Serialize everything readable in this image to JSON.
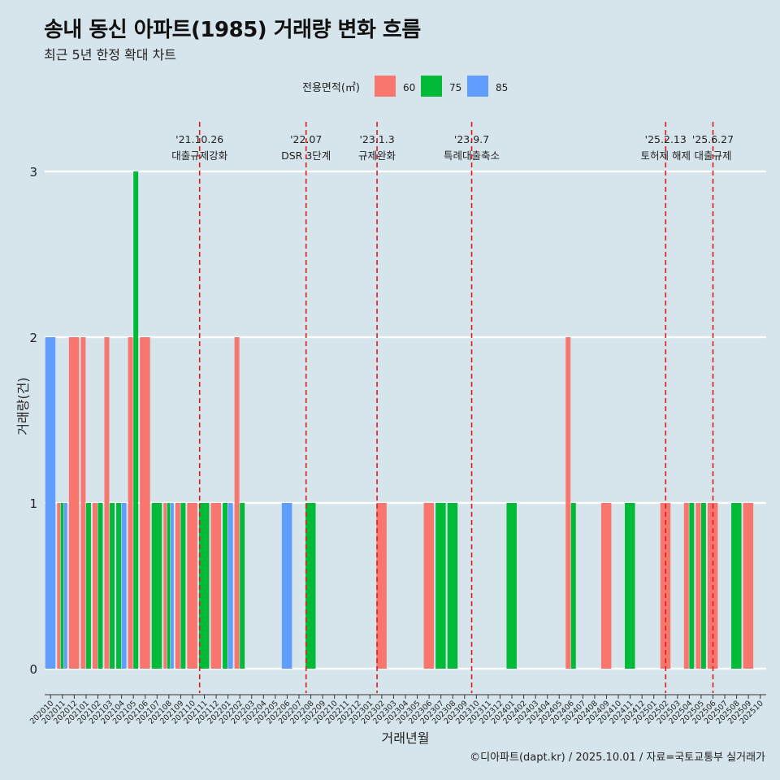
{
  "title": "송내 동신 아파트(1985) 거래량 변화 흐름",
  "subtitle": "최근 5년 한정 확대 차트",
  "caption": "©디아파트(dapt.kr) / 2025.10.01 / 자료=국토교통부 실거래가",
  "colors": {
    "60": "#f8766d",
    "75": "#00ba38",
    "85": "#619cff",
    "event_line": "#e31a1c",
    "grid": "#ffffff",
    "background": "#d6e4eb"
  },
  "chart_data": {
    "type": "bar",
    "title": "송내 동신 아파트(1985) 거래량 변화 흐름",
    "xlabel": "거래년월",
    "ylabel": "거래량(건)",
    "ylim": [
      0,
      3
    ],
    "yticks": [
      0,
      1,
      2,
      3
    ],
    "legend": {
      "title": "전용면적(㎡)",
      "position": "top",
      "keys": [
        "60",
        "75",
        "85"
      ]
    },
    "categories": [
      "202010",
      "202011",
      "202012",
      "202101",
      "202102",
      "202103",
      "202104",
      "202105",
      "202106",
      "202107",
      "202108",
      "202109",
      "202110",
      "202111",
      "202112",
      "202201",
      "202202",
      "202203",
      "202204",
      "202205",
      "202206",
      "202207",
      "202208",
      "202209",
      "202210",
      "202211",
      "202212",
      "202301",
      "202302",
      "202303",
      "202304",
      "202305",
      "202306",
      "202307",
      "202308",
      "202309",
      "202310",
      "202311",
      "202312",
      "202401",
      "202402",
      "202403",
      "202404",
      "202405",
      "202406",
      "202407",
      "202408",
      "202409",
      "202410",
      "202411",
      "202412",
      "202501",
      "202502",
      "202503",
      "202504",
      "202505",
      "202506",
      "202507",
      "202508",
      "202509",
      "202510"
    ],
    "series": [
      {
        "name": "60",
        "values": [
          0,
          1,
          2,
          2,
          1,
          2,
          0,
          2,
          2,
          0,
          1,
          1,
          1,
          0,
          1,
          0,
          2,
          0,
          0,
          0,
          0,
          0,
          0,
          0,
          0,
          0,
          0,
          0,
          1,
          0,
          0,
          0,
          1,
          0,
          0,
          0,
          0,
          0,
          0,
          0,
          0,
          0,
          0,
          0,
          2,
          0,
          0,
          1,
          0,
          0,
          0,
          0,
          1,
          0,
          1,
          1,
          1,
          0,
          0,
          1,
          0
        ]
      },
      {
        "name": "75",
        "values": [
          0,
          1,
          0,
          1,
          1,
          1,
          1,
          3,
          0,
          1,
          1,
          1,
          0,
          1,
          0,
          1,
          1,
          0,
          0,
          0,
          0,
          0,
          1,
          0,
          0,
          0,
          0,
          0,
          0,
          0,
          0,
          0,
          0,
          1,
          1,
          0,
          0,
          0,
          0,
          1,
          0,
          0,
          0,
          0,
          1,
          0,
          0,
          0,
          0,
          1,
          0,
          0,
          0,
          0,
          1,
          1,
          0,
          0,
          1,
          0,
          0
        ]
      },
      {
        "name": "85",
        "values": [
          2,
          1,
          0,
          0,
          0,
          0,
          1,
          0,
          0,
          0,
          1,
          0,
          0,
          0,
          0,
          1,
          0,
          0,
          0,
          0,
          1,
          0,
          0,
          0,
          0,
          0,
          0,
          0,
          0,
          0,
          0,
          0,
          0,
          0,
          0,
          0,
          0,
          0,
          0,
          0,
          0,
          0,
          0,
          0,
          0,
          0,
          0,
          0,
          0,
          0,
          0,
          0,
          0,
          0,
          0,
          0,
          0,
          0,
          0,
          0,
          0
        ]
      }
    ],
    "events": [
      {
        "date": "'21.10.26",
        "label": "대출규제강화",
        "x": 12.6
      },
      {
        "date": "'22.07",
        "label": "DSR 3단계",
        "x": 21.6
      },
      {
        "date": "'23.1.3",
        "label": "규제완화",
        "x": 27.6
      },
      {
        "date": "'23.9.7",
        "label": "특례대출축소",
        "x": 35.6
      },
      {
        "date": "'25.2.13",
        "label": "토허제 해제",
        "x": 52.0
      },
      {
        "date": "'25.6.27",
        "label": "대출규제",
        "x": 56.0
      }
    ]
  }
}
